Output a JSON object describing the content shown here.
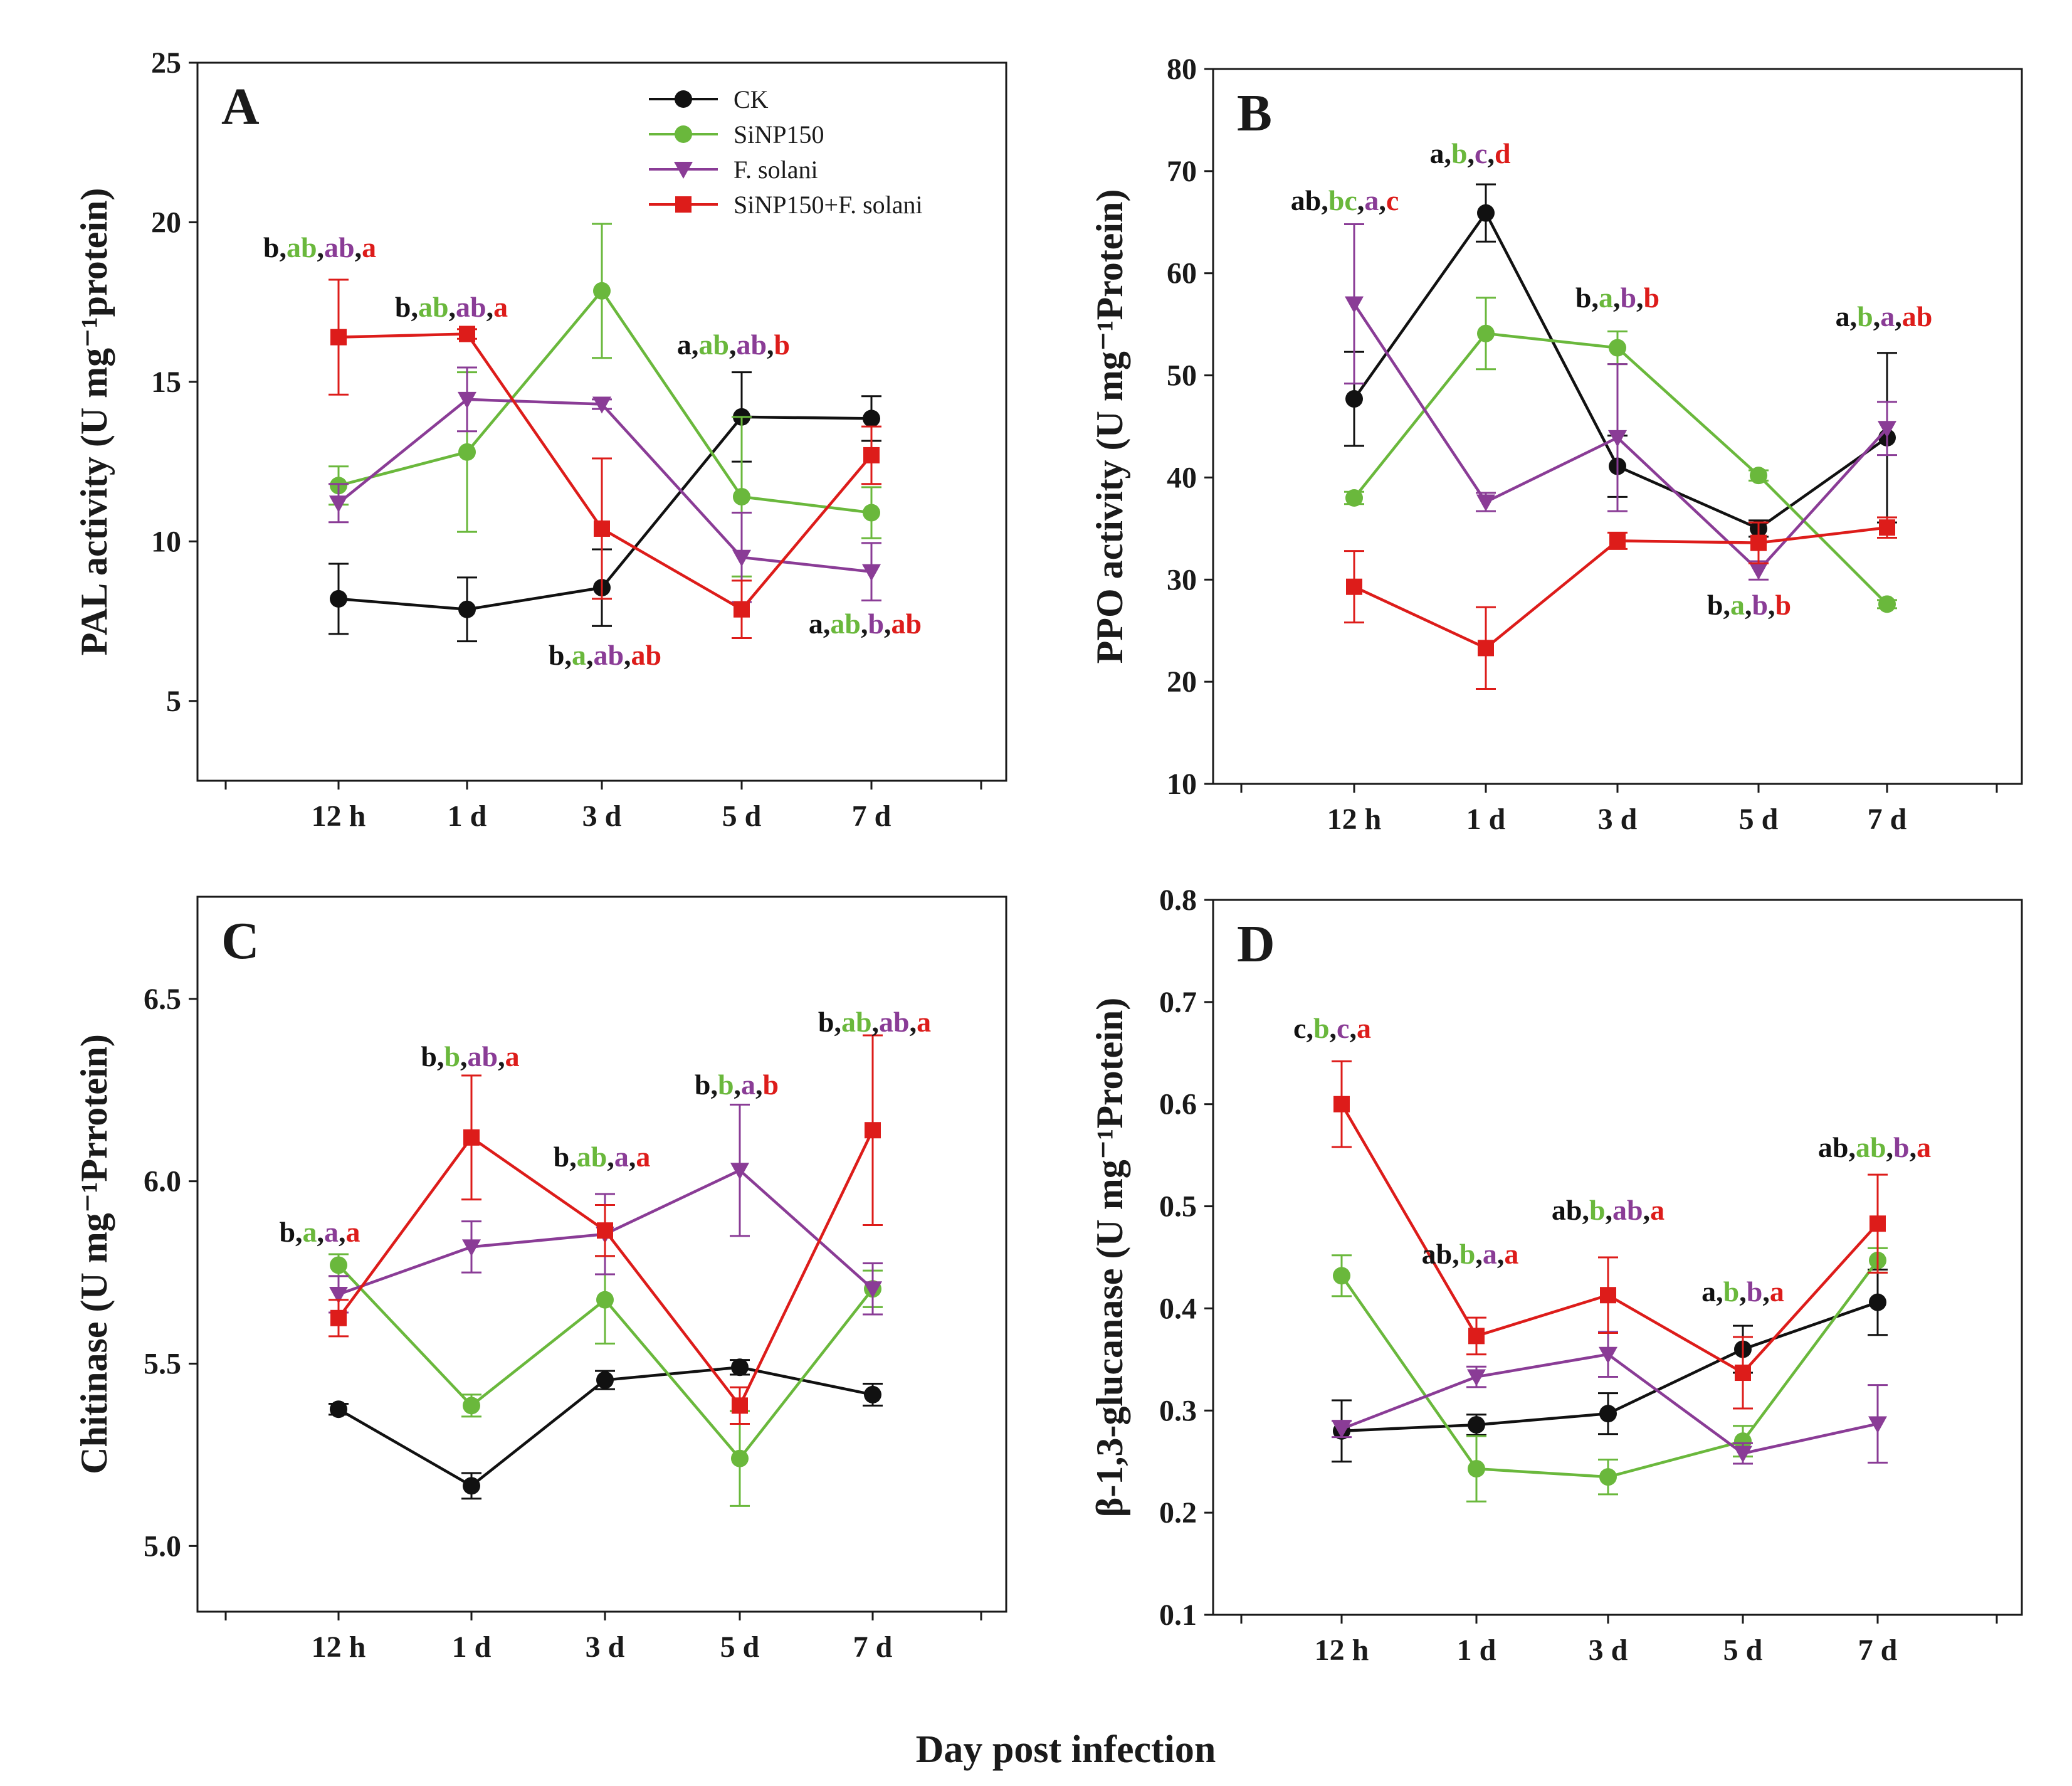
{
  "xlabel": "Day post infection",
  "colors": {
    "CK": "#111111",
    "SiNP150": "#6ab83c",
    "F": "#8a3c96",
    "Si_F": "#dd1c1a"
  },
  "legend": [
    {
      "key": "CK",
      "label": "CK",
      "marker": "circle"
    },
    {
      "key": "SiNP150",
      "label": "SiNP150",
      "marker": "circle"
    },
    {
      "key": "F",
      "label": "F. solani",
      "marker": "triangle-down"
    },
    {
      "key": "Si_F",
      "label": "SiNP150+F. solani",
      "marker": "square"
    }
  ],
  "chart_data": [
    {
      "panel": "A",
      "type": "line",
      "ylabel": "PAL activity (U mg⁻¹protein)",
      "ylim": [
        2.5,
        25
      ],
      "yticks": [
        5,
        10,
        15,
        20,
        25
      ],
      "categories": [
        "12 h",
        "1 d",
        "3 d",
        "5 d",
        "7 d"
      ],
      "series": [
        {
          "key": "CK",
          "name": "CK",
          "values": [
            8.2,
            7.87,
            8.55,
            13.9,
            13.85
          ],
          "errors": [
            1.1,
            1.0,
            1.2,
            1.4,
            0.7
          ]
        },
        {
          "key": "SiNP150",
          "name": "SiNP150",
          "values": [
            11.75,
            12.8,
            17.85,
            11.4,
            10.9
          ],
          "errors": [
            0.6,
            2.5,
            2.1,
            2.5,
            0.8
          ]
        },
        {
          "key": "F",
          "name": "F. solani",
          "values": [
            11.2,
            14.45,
            14.3,
            9.5,
            9.05
          ],
          "errors": [
            0.6,
            1.0,
            0.15,
            1.4,
            0.9
          ]
        },
        {
          "key": "Si_F",
          "name": "SiNP150+F. solani",
          "values": [
            16.4,
            16.5,
            10.4,
            7.87,
            12.7
          ],
          "errors": [
            1.8,
            0.15,
            2.2,
            0.9,
            0.9
          ]
        }
      ],
      "annotations": [
        {
          "parts": [
            "b",
            "ab",
            "ab",
            "a"
          ]
        },
        {
          "parts": [
            "b",
            "ab",
            "ab",
            "a"
          ]
        },
        {
          "parts": [
            "b",
            "a",
            "ab",
            "ab"
          ]
        },
        {
          "parts": [
            "a",
            "ab",
            "ab",
            "b"
          ]
        },
        {
          "parts": [
            "a",
            "ab",
            "b",
            "ab"
          ]
        }
      ]
    },
    {
      "panel": "B",
      "type": "line",
      "ylabel": "PPO activity (U mg⁻¹Protein)",
      "ylim": [
        10,
        80
      ],
      "yticks": [
        10,
        20,
        30,
        40,
        50,
        60,
        70,
        80
      ],
      "categories": [
        "12 h",
        "1 d",
        "3 d",
        "5 d",
        "7 d"
      ],
      "series": [
        {
          "key": "CK",
          "name": "CK",
          "values": [
            47.7,
            65.9,
            41.1,
            35.0,
            43.9
          ],
          "errors": [
            4.6,
            2.8,
            3.0,
            0.8,
            8.3
          ]
        },
        {
          "key": "SiNP150",
          "name": "SiNP150",
          "values": [
            38.0,
            54.1,
            52.7,
            40.2,
            27.6
          ],
          "errors": [
            0.6,
            3.5,
            1.6,
            0.5,
            0.4
          ]
        },
        {
          "key": "F",
          "name": "F. solani",
          "values": [
            57.0,
            37.6,
            43.9,
            30.9,
            44.8
          ],
          "errors": [
            7.8,
            0.9,
            7.2,
            0.9,
            2.6
          ]
        },
        {
          "key": "Si_F",
          "name": "SiNP150+F. solani",
          "values": [
            29.3,
            23.3,
            33.8,
            33.6,
            35.1
          ],
          "errors": [
            3.5,
            4.0,
            0.8,
            2.0,
            1.0
          ]
        }
      ],
      "annotations": [
        {
          "parts": [
            "ab",
            "bc",
            "a",
            "c"
          ]
        },
        {
          "parts": [
            "a",
            "b",
            "c",
            "d"
          ]
        },
        {
          "parts": [
            "b",
            "a",
            "b",
            "b"
          ]
        },
        {
          "parts": [
            "b",
            "a",
            "b",
            "b"
          ]
        },
        {
          "parts": [
            "a",
            "b",
            "a",
            "ab"
          ]
        }
      ]
    },
    {
      "panel": "C",
      "type": "line",
      "ylabel": "Chitinase (U mg⁻¹Prrotein)",
      "ylim": [
        4.82,
        6.78
      ],
      "yticks": [
        5.0,
        5.5,
        6.0,
        6.5
      ],
      "categories": [
        "12 h",
        "1 d",
        "3 d",
        "5 d",
        "7 d"
      ],
      "series": [
        {
          "key": "CK",
          "name": "CK",
          "values": [
            5.375,
            5.165,
            5.455,
            5.49,
            5.415
          ],
          "errors": [
            0.015,
            0.035,
            0.025,
            0.02,
            0.03
          ]
        },
        {
          "key": "SiNP150",
          "name": "SiNP150",
          "values": [
            5.77,
            5.385,
            5.675,
            5.24,
            5.705
          ],
          "errors": [
            0.03,
            0.03,
            0.12,
            0.13,
            0.05
          ]
        },
        {
          "key": "F",
          "name": "F. solani",
          "values": [
            5.69,
            5.82,
            5.855,
            6.03,
            5.705
          ],
          "errors": [
            0.05,
            0.07,
            0.11,
            0.18,
            0.07
          ]
        },
        {
          "key": "Si_F",
          "name": "SiNP150+F. solani",
          "values": [
            5.625,
            6.12,
            5.865,
            5.385,
            6.14
          ],
          "errors": [
            0.05,
            0.17,
            0.07,
            0.05,
            0.26
          ]
        }
      ],
      "annotations": [
        {
          "parts": [
            "b",
            "a",
            "a",
            "a"
          ]
        },
        {
          "parts": [
            "b",
            "b",
            "ab",
            "a"
          ]
        },
        {
          "parts": [
            "b",
            "ab",
            "a",
            "a"
          ]
        },
        {
          "parts": [
            "b",
            "b",
            "a",
            "b"
          ]
        },
        {
          "parts": [
            "b",
            "ab",
            "ab",
            "a"
          ]
        }
      ]
    },
    {
      "panel": "D",
      "type": "line",
      "ylabel": "β-1,3-glucanase (U mg⁻¹Protein)",
      "ylim": [
        0.1,
        0.8
      ],
      "yticks": [
        0.1,
        0.2,
        0.3,
        0.4,
        0.5,
        0.6,
        0.7,
        0.8
      ],
      "categories": [
        "12 h",
        "1 d",
        "3 d",
        "5 d",
        "7 d"
      ],
      "series": [
        {
          "key": "CK",
          "name": "CK",
          "values": [
            0.28,
            0.286,
            0.297,
            0.36,
            0.406
          ],
          "errors": [
            0.03,
            0.01,
            0.02,
            0.023,
            0.032
          ]
        },
        {
          "key": "SiNP150",
          "name": "SiNP150",
          "values": [
            0.432,
            0.243,
            0.235,
            0.27,
            0.447
          ],
          "errors": [
            0.02,
            0.032,
            0.017,
            0.015,
            0.012
          ]
        },
        {
          "key": "F",
          "name": "F. solani",
          "values": [
            0.282,
            0.333,
            0.355,
            0.258,
            0.287
          ],
          "errors": [
            0.008,
            0.01,
            0.022,
            0.01,
            0.038
          ]
        },
        {
          "key": "Si_F",
          "name": "SiNP150+F. solani",
          "values": [
            0.6,
            0.373,
            0.413,
            0.337,
            0.483
          ],
          "errors": [
            0.042,
            0.018,
            0.037,
            0.035,
            0.048
          ]
        }
      ],
      "annotations": [
        {
          "parts": [
            "c",
            "b",
            "c",
            "a"
          ]
        },
        {
          "parts": [
            "ab",
            "b",
            "a",
            "a"
          ]
        },
        {
          "parts": [
            "ab",
            "b",
            "ab",
            "a"
          ]
        },
        {
          "parts": [
            "a",
            "b",
            "b",
            "a"
          ]
        },
        {
          "parts": [
            "ab",
            "ab",
            "b",
            "a"
          ]
        }
      ]
    }
  ]
}
